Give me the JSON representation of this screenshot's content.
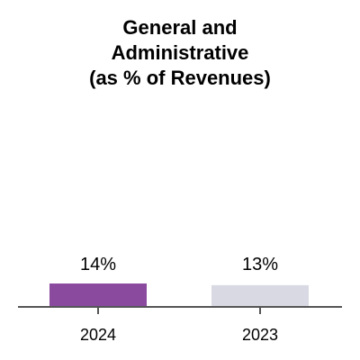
{
  "chart_data": {
    "type": "bar",
    "title_lines": [
      "General and",
      "Administrative",
      "(as % of Revenues)"
    ],
    "categories": [
      "2024",
      "2023"
    ],
    "values": [
      14,
      13
    ],
    "value_labels": [
      "14%",
      "13%"
    ],
    "colors": [
      "#8a4b9e",
      "#d9d9e3"
    ],
    "axis_color": "#555555",
    "xlabel": "",
    "ylabel": "",
    "grid": false,
    "legend": "none"
  }
}
